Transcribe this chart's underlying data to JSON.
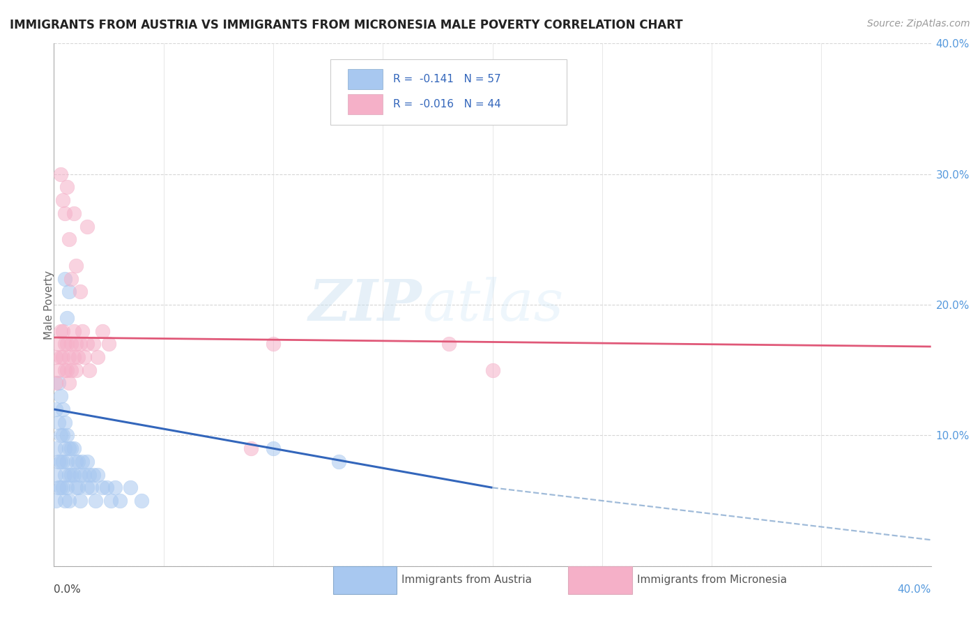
{
  "title": "IMMIGRANTS FROM AUSTRIA VS IMMIGRANTS FROM MICRONESIA MALE POVERTY CORRELATION CHART",
  "source": "Source: ZipAtlas.com",
  "ylabel": "Male Poverty",
  "xlim": [
    0,
    0.4
  ],
  "ylim": [
    0,
    0.4
  ],
  "yticks": [
    0.0,
    0.1,
    0.2,
    0.3,
    0.4
  ],
  "xtick_labels_left": "0.0%",
  "xtick_labels_right": "40.0%",
  "ytick_labels_right": [
    "",
    "10.0%",
    "20.0%",
    "30.0%",
    "40.0%"
  ],
  "legend_r1": "R =  -0.141   N = 57",
  "legend_r2": "R =  -0.016   N = 44",
  "austria_color": "#a8c8f0",
  "micronesia_color": "#f5b0c8",
  "austria_trend_color": "#3366bb",
  "micronesia_trend_color": "#e05878",
  "dashed_color": "#88aad0",
  "watermark_zip": "ZIP",
  "watermark_atlas": "atlas",
  "austria_points_x": [
    0.001,
    0.001,
    0.001,
    0.001,
    0.002,
    0.002,
    0.002,
    0.002,
    0.003,
    0.003,
    0.003,
    0.003,
    0.004,
    0.004,
    0.004,
    0.004,
    0.005,
    0.005,
    0.005,
    0.005,
    0.006,
    0.006,
    0.006,
    0.007,
    0.007,
    0.007,
    0.008,
    0.008,
    0.009,
    0.009,
    0.01,
    0.01,
    0.011,
    0.011,
    0.012,
    0.012,
    0.013,
    0.014,
    0.015,
    0.015,
    0.016,
    0.017,
    0.018,
    0.019,
    0.02,
    0.022,
    0.024,
    0.026,
    0.028,
    0.03,
    0.035,
    0.04,
    0.005,
    0.006,
    0.007,
    0.1,
    0.13
  ],
  "austria_points_y": [
    0.12,
    0.09,
    0.07,
    0.05,
    0.14,
    0.11,
    0.08,
    0.06,
    0.13,
    0.1,
    0.08,
    0.06,
    0.12,
    0.1,
    0.08,
    0.06,
    0.11,
    0.09,
    0.07,
    0.05,
    0.1,
    0.08,
    0.06,
    0.09,
    0.07,
    0.05,
    0.09,
    0.07,
    0.09,
    0.07,
    0.08,
    0.06,
    0.08,
    0.06,
    0.07,
    0.05,
    0.08,
    0.07,
    0.08,
    0.06,
    0.07,
    0.06,
    0.07,
    0.05,
    0.07,
    0.06,
    0.06,
    0.05,
    0.06,
    0.05,
    0.06,
    0.05,
    0.22,
    0.19,
    0.21,
    0.09,
    0.08
  ],
  "micronesia_points_x": [
    0.001,
    0.001,
    0.002,
    0.002,
    0.003,
    0.003,
    0.004,
    0.004,
    0.005,
    0.005,
    0.006,
    0.006,
    0.007,
    0.007,
    0.008,
    0.008,
    0.009,
    0.009,
    0.01,
    0.01,
    0.011,
    0.012,
    0.013,
    0.014,
    0.015,
    0.016,
    0.018,
    0.02,
    0.022,
    0.025,
    0.003,
    0.004,
    0.005,
    0.006,
    0.007,
    0.008,
    0.009,
    0.01,
    0.012,
    0.015,
    0.09,
    0.1,
    0.18,
    0.2
  ],
  "micronesia_points_y": [
    0.16,
    0.14,
    0.17,
    0.15,
    0.18,
    0.16,
    0.18,
    0.16,
    0.17,
    0.15,
    0.17,
    0.15,
    0.16,
    0.14,
    0.17,
    0.15,
    0.18,
    0.16,
    0.17,
    0.15,
    0.16,
    0.17,
    0.18,
    0.16,
    0.17,
    0.15,
    0.17,
    0.16,
    0.18,
    0.17,
    0.3,
    0.28,
    0.27,
    0.29,
    0.25,
    0.22,
    0.27,
    0.23,
    0.21,
    0.26,
    0.09,
    0.17,
    0.17,
    0.15
  ],
  "austria_trend_x": [
    0.0,
    0.2
  ],
  "austria_trend_y": [
    0.12,
    0.06
  ],
  "micronesia_trend_x": [
    0.0,
    0.4
  ],
  "micronesia_trend_y": [
    0.175,
    0.168
  ],
  "dashed_trend_x": [
    0.2,
    0.4
  ],
  "dashed_trend_y": [
    0.06,
    0.02
  ],
  "grid_color": "#cccccc",
  "grid_linestyle": "--",
  "bg_color": "#ffffff"
}
